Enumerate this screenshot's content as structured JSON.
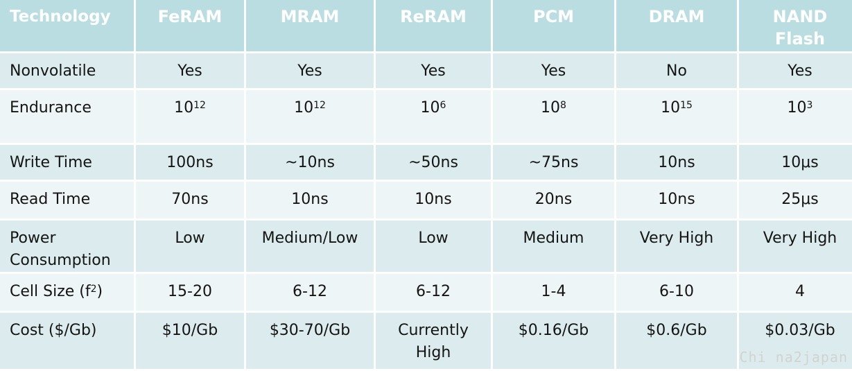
{
  "header": {
    "technology": "Technology",
    "feram": "FeRAM",
    "mram": "MRAM",
    "reram": "ReRAM",
    "pcm": "PCM",
    "dram": "DRAM",
    "nand_line1": "NAND",
    "nand_line2": "Flash"
  },
  "rows": {
    "nonvolatile": {
      "label": "Nonvolatile",
      "values": [
        "Yes",
        "Yes",
        "Yes",
        "Yes",
        "No",
        "Yes"
      ]
    },
    "endurance": {
      "label": "Endurance",
      "base": "10",
      "exponents": [
        "12",
        "12",
        "6",
        "8",
        "15",
        "3"
      ]
    },
    "write_time": {
      "label": "Write Time",
      "values": [
        "100ns",
        "~10ns",
        "~50ns",
        "~75ns",
        "10ns",
        "10μs"
      ]
    },
    "read_time": {
      "label": "Read Time",
      "values": [
        "70ns",
        "10ns",
        "10ns",
        "20ns",
        "10ns",
        "25μs"
      ]
    },
    "power": {
      "label_line1": "Power",
      "label_line2": "Consumption",
      "values": [
        "Low",
        "Medium/Low",
        "Low",
        "Medium",
        "Very High",
        "Very High"
      ]
    },
    "cell_size": {
      "label_prefix": "Cell Size (f",
      "label_sup": "2",
      "label_suffix": ")",
      "values": [
        "15-20",
        "6-12",
        "6-12",
        "1-4",
        "6-10",
        "4"
      ]
    },
    "cost": {
      "label": "Cost ($/Gb)",
      "values": [
        "$10/Gb",
        "$30-70/Gb",
        "Currently",
        "$0.16/Gb",
        "$0.6/Gb",
        "$0.03/Gb"
      ],
      "reram_line2": "High"
    }
  },
  "watermark": "Chi na2japan",
  "colors": {
    "header_bg": "#b9dde1",
    "row_dark": "#dcecee",
    "row_light": "#eef5f6"
  }
}
